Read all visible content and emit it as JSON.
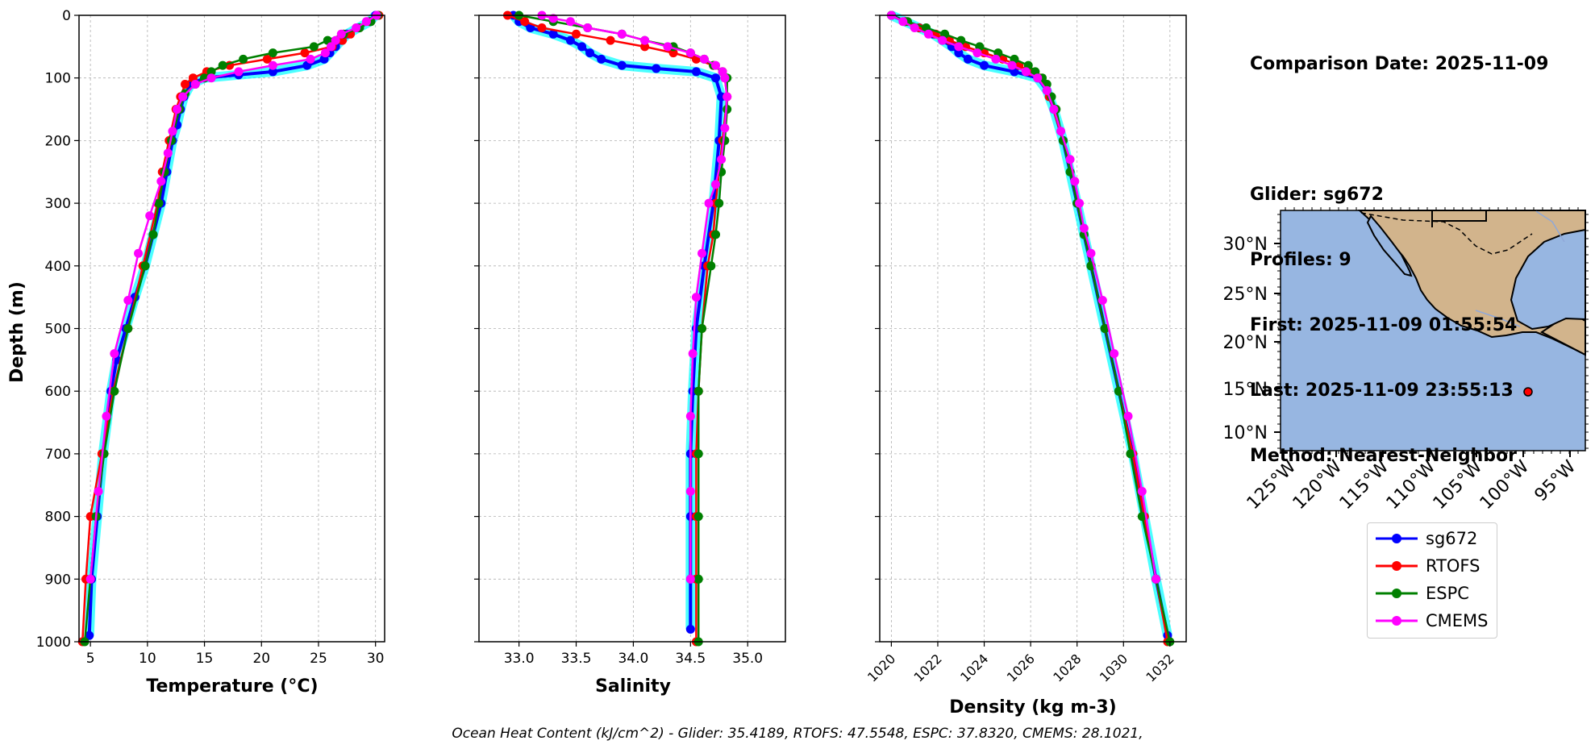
{
  "info": {
    "comparison_date": "Comparison Date: 2025-11-09",
    "glider": "Glider: sg672",
    "profiles": "Profiles: 9",
    "first": "First: 2025-11-09 01:55:54",
    "last": "Last: 2025-11-09 23:55:13",
    "method": "Method: Nearest-Neighbor"
  },
  "footer": "Ocean Heat Content (kJ/cm^2) - Glider: 35.4189,  RTOFS: 47.5548,  ESPC: 37.8320,  CMEMS: 28.1021,",
  "legend": [
    {
      "name": "sg672",
      "color": "#0000ff"
    },
    {
      "name": "RTOFS",
      "color": "#ff0000"
    },
    {
      "name": "ESPC",
      "color": "#008000"
    },
    {
      "name": "CMEMS",
      "color": "#ff00ff"
    }
  ],
  "chart_data": [
    {
      "type": "line",
      "xlabel": "Temperature (°C)",
      "ylabel": "Depth (m)",
      "xlim": [
        4,
        30.8
      ],
      "ylim": [
        1000,
        0
      ],
      "xticks": [
        5,
        10,
        15,
        20,
        25,
        30
      ],
      "yticks": [
        0,
        100,
        200,
        300,
        400,
        500,
        600,
        700,
        800,
        900,
        1000
      ],
      "grid": true,
      "series": [
        {
          "name": "sg672",
          "color": "#0000ff",
          "depth": [
            0,
            10,
            20,
            30,
            40,
            50,
            60,
            70,
            80,
            90,
            95,
            100,
            110,
            130,
            150,
            175,
            200,
            250,
            300,
            350,
            400,
            450,
            500,
            550,
            600,
            700,
            800,
            900,
            990
          ],
          "values": [
            30,
            29.5,
            28.5,
            27.5,
            27,
            26.5,
            26,
            25.5,
            24,
            21,
            18,
            15,
            13.8,
            13.2,
            12.9,
            12.6,
            12.2,
            11.7,
            11.2,
            10.5,
            9.8,
            8.9,
            8.1,
            7.3,
            6.8,
            6.1,
            5.6,
            5.1,
            4.9
          ]
        },
        {
          "name": "RTOFS",
          "color": "#ff0000",
          "depth": [
            0,
            10,
            20,
            30,
            40,
            50,
            60,
            70,
            80,
            90,
            100,
            110,
            130,
            150,
            200,
            250,
            300,
            400,
            500,
            600,
            700,
            800,
            900,
            1000
          ],
          "values": [
            30.3,
            29.5,
            28.6,
            27.8,
            27.1,
            26.2,
            23.8,
            20.5,
            17.2,
            15.2,
            14.0,
            13.3,
            12.9,
            12.5,
            11.9,
            11.3,
            10.9,
            9.6,
            8.3,
            7.0,
            6.0,
            5.0,
            4.6,
            4.3
          ]
        },
        {
          "name": "ESPC",
          "color": "#008000",
          "depth": [
            0,
            10,
            20,
            30,
            40,
            50,
            60,
            70,
            80,
            90,
            100,
            110,
            125,
            150,
            200,
            250,
            300,
            350,
            400,
            500,
            600,
            700,
            800,
            900,
            1000
          ],
          "values": [
            30.2,
            29.6,
            28.6,
            27.2,
            25.8,
            24.6,
            21.0,
            18.4,
            16.6,
            15.6,
            15.0,
            14.2,
            13.3,
            12.8,
            12.1,
            11.5,
            11.0,
            10.5,
            9.8,
            8.3,
            7.1,
            6.2,
            5.5,
            5.0,
            4.5
          ]
        },
        {
          "name": "CMEMS",
          "color": "#ff00ff",
          "depth": [
            0,
            10,
            20,
            30,
            40,
            50,
            60,
            70,
            80,
            90,
            100,
            110,
            130,
            150,
            185,
            220,
            265,
            320,
            380,
            455,
            540,
            640,
            760,
            900
          ],
          "values": [
            30.1,
            29.2,
            28.3,
            27.0,
            26.5,
            26.1,
            25.6,
            24.3,
            21.0,
            18.0,
            15.6,
            14.2,
            13.1,
            12.6,
            12.2,
            11.8,
            11.2,
            10.2,
            9.2,
            8.3,
            7.1,
            6.4,
            5.7,
            5.0
          ]
        }
      ]
    },
    {
      "type": "line",
      "xlabel": "Salinity",
      "ylim": [
        1000,
        0
      ],
      "xlim": [
        32.65,
        35.33
      ],
      "xticks": [
        33.0,
        33.5,
        34.0,
        34.5,
        35.0
      ],
      "grid": true,
      "series": [
        {
          "name": "sg672",
          "color": "#0000ff",
          "depth": [
            0,
            10,
            20,
            30,
            40,
            50,
            60,
            70,
            80,
            85,
            90,
            100,
            130,
            200,
            300,
            400,
            500,
            600,
            700,
            800,
            900,
            980
          ],
          "values": [
            32.95,
            33.0,
            33.1,
            33.3,
            33.45,
            33.55,
            33.62,
            33.72,
            33.9,
            34.2,
            34.55,
            34.72,
            34.77,
            34.75,
            34.7,
            34.62,
            34.55,
            34.52,
            34.5,
            34.5,
            34.5,
            34.5
          ]
        },
        {
          "name": "RTOFS",
          "color": "#ff0000",
          "depth": [
            0,
            10,
            20,
            30,
            40,
            50,
            60,
            70,
            80,
            90,
            100,
            130,
            200,
            300,
            350,
            400,
            500,
            600,
            700,
            800,
            900,
            1000
          ],
          "values": [
            32.9,
            33.05,
            33.2,
            33.5,
            33.8,
            34.1,
            34.35,
            34.55,
            34.7,
            34.78,
            34.8,
            34.82,
            34.78,
            34.72,
            34.7,
            34.65,
            34.6,
            34.57,
            34.55,
            34.55,
            34.55,
            34.55
          ]
        },
        {
          "name": "ESPC",
          "color": "#008000",
          "depth": [
            0,
            10,
            20,
            30,
            40,
            50,
            60,
            70,
            80,
            90,
            100,
            150,
            200,
            250,
            300,
            350,
            400,
            500,
            600,
            700,
            800,
            900,
            1000
          ],
          "values": [
            33.0,
            33.3,
            33.6,
            33.9,
            34.1,
            34.35,
            34.5,
            34.62,
            34.7,
            34.78,
            34.82,
            34.82,
            34.8,
            34.77,
            34.75,
            34.72,
            34.68,
            34.6,
            34.57,
            34.57,
            34.57,
            34.57,
            34.57
          ]
        },
        {
          "name": "CMEMS",
          "color": "#ff00ff",
          "depth": [
            0,
            5,
            10,
            20,
            30,
            40,
            50,
            60,
            70,
            80,
            90,
            100,
            130,
            180,
            230,
            270,
            300,
            380,
            450,
            540,
            640,
            760,
            900
          ],
          "values": [
            33.2,
            33.3,
            33.45,
            33.6,
            33.9,
            34.1,
            34.3,
            34.5,
            34.62,
            34.72,
            34.78,
            34.8,
            34.82,
            34.8,
            34.77,
            34.72,
            34.66,
            34.6,
            34.55,
            34.52,
            34.5,
            34.5,
            34.5
          ]
        }
      ]
    },
    {
      "type": "line",
      "xlabel": "Density (kg m-3)",
      "ylim": [
        1000,
        0
      ],
      "xlim": [
        1019.5,
        1032.7
      ],
      "xticks": [
        1020,
        1022,
        1024,
        1026,
        1028,
        1030,
        1032
      ],
      "grid": true,
      "series": [
        {
          "name": "sg672",
          "color": "#0000ff",
          "depth": [
            0,
            10,
            20,
            30,
            40,
            50,
            60,
            70,
            80,
            90,
            100,
            120,
            150,
            200,
            300,
            400,
            500,
            600,
            700,
            800,
            900,
            990
          ],
          "values": [
            1020.0,
            1020.6,
            1021.2,
            1021.8,
            1022.2,
            1022.6,
            1022.9,
            1023.3,
            1024.0,
            1025.3,
            1026.3,
            1026.7,
            1027.0,
            1027.4,
            1028.0,
            1028.6,
            1029.2,
            1029.8,
            1030.4,
            1030.9,
            1031.4,
            1031.9
          ]
        },
        {
          "name": "RTOFS",
          "color": "#ff0000",
          "depth": [
            0,
            10,
            20,
            30,
            40,
            50,
            60,
            70,
            80,
            90,
            100,
            130,
            200,
            300,
            400,
            500,
            600,
            700,
            800,
            900,
            1000
          ],
          "values": [
            1020.0,
            1020.6,
            1021.2,
            1021.9,
            1022.5,
            1023.2,
            1024.0,
            1024.8,
            1025.5,
            1026.0,
            1026.4,
            1026.8,
            1027.4,
            1028.0,
            1028.6,
            1029.2,
            1029.8,
            1030.4,
            1030.9,
            1031.4,
            1031.9
          ]
        },
        {
          "name": "ESPC",
          "color": "#008000",
          "depth": [
            0,
            10,
            20,
            30,
            40,
            50,
            60,
            70,
            80,
            90,
            100,
            110,
            130,
            150,
            200,
            250,
            300,
            350,
            400,
            500,
            600,
            700,
            800,
            900,
            1000
          ],
          "values": [
            1020.0,
            1020.7,
            1021.5,
            1022.3,
            1023.0,
            1023.8,
            1024.6,
            1025.3,
            1025.9,
            1026.2,
            1026.5,
            1026.7,
            1026.9,
            1027.1,
            1027.4,
            1027.7,
            1028.0,
            1028.3,
            1028.6,
            1029.2,
            1029.8,
            1030.3,
            1030.8,
            1031.4,
            1032.0
          ]
        },
        {
          "name": "CMEMS",
          "color": "#ff00ff",
          "depth": [
            0,
            10,
            20,
            30,
            40,
            50,
            60,
            70,
            80,
            90,
            100,
            120,
            150,
            185,
            230,
            265,
            300,
            340,
            380,
            455,
            540,
            640,
            760,
            900
          ],
          "values": [
            1020.0,
            1020.5,
            1021.0,
            1021.6,
            1022.2,
            1022.9,
            1023.7,
            1024.5,
            1025.2,
            1025.8,
            1026.3,
            1026.7,
            1027.0,
            1027.3,
            1027.7,
            1027.9,
            1028.1,
            1028.3,
            1028.6,
            1029.1,
            1029.6,
            1030.2,
            1030.8,
            1031.4
          ]
        }
      ]
    }
  ],
  "map": {
    "lat_ticks": [
      "10°N",
      "15°N",
      "20°N",
      "25°N",
      "30°N"
    ],
    "lon_ticks": [
      "125°W",
      "120°W",
      "115°W",
      "110°W",
      "105°W",
      "100°W",
      "95°W"
    ],
    "ocean_color": "#97b6e1",
    "land_color": "#d2b48c",
    "glider_position": {
      "lat": 14.5,
      "lon": -98.5
    }
  }
}
